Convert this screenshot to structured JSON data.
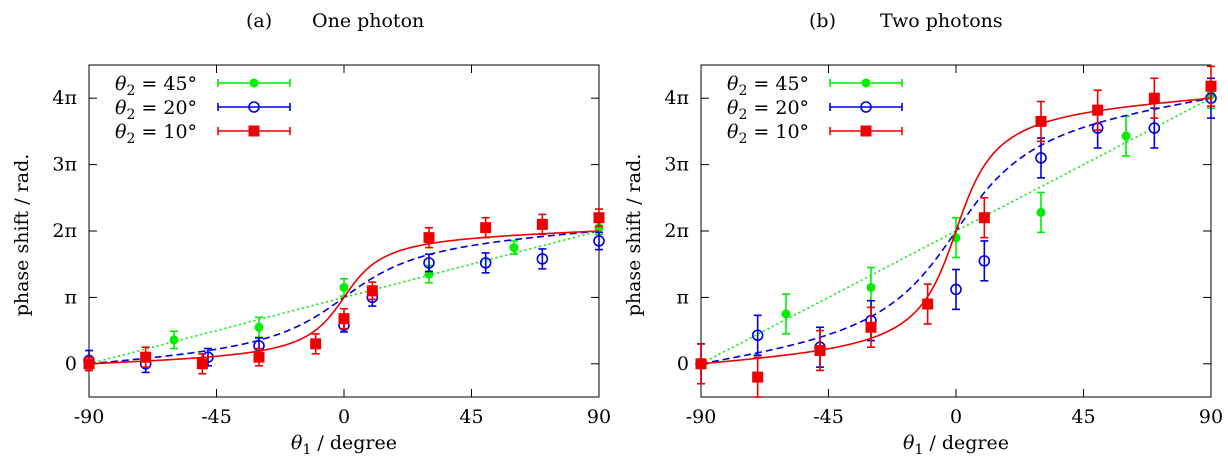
{
  "chart_data": [
    {
      "type": "line",
      "panel_letter": "(a)",
      "title": "One photon",
      "xlabel_symbol": "θ",
      "xlabel_sub": "1",
      "xlabel_rest": " / degree",
      "ylabel": "phase shift / rad.",
      "xlim": [
        -90,
        90
      ],
      "ylim": [
        -0.5,
        4.5
      ],
      "xticks": [
        -90,
        -45,
        0,
        45,
        90
      ],
      "xtick_labels": [
        "-90",
        "-45",
        "0",
        "45",
        "90"
      ],
      "yticks": [
        0,
        1,
        2,
        3,
        4
      ],
      "ytick_labels": [
        "0",
        "π",
        "2π",
        "3π",
        "4π"
      ],
      "y_unit": "π rad",
      "legend_position": "top-left",
      "series": [
        {
          "name_symbol": "θ",
          "name_sub": "2",
          "name_rest": " = 45°",
          "color": "#00ee00",
          "marker": "filled-circle",
          "line": "dotted",
          "fit_param": 1.0,
          "points": [
            {
              "x": -90,
              "y": 0.0,
              "err": 0.05
            },
            {
              "x": -60,
              "y": 0.36,
              "err": 0.13
            },
            {
              "x": -30,
              "y": 0.55,
              "err": 0.15
            },
            {
              "x": 0,
              "y": 1.15,
              "err": 0.13
            },
            {
              "x": 30,
              "y": 1.35,
              "err": 0.13
            },
            {
              "x": 60,
              "y": 1.75,
              "err": 0.1
            },
            {
              "x": 90,
              "y": 2.05,
              "err": 0.1
            }
          ]
        },
        {
          "name_symbol": "θ",
          "name_sub": "2",
          "name_rest": " = 20°",
          "color": "#0000dd",
          "marker": "open-circle",
          "line": "dashed",
          "fit_param": 0.36,
          "points": [
            {
              "x": -90,
              "y": 0.05,
              "err": 0.15
            },
            {
              "x": -70,
              "y": 0.0,
              "err": 0.13
            },
            {
              "x": -48,
              "y": 0.1,
              "err": 0.13
            },
            {
              "x": -30,
              "y": 0.27,
              "err": 0.12
            },
            {
              "x": 0,
              "y": 0.58,
              "err": 0.1
            },
            {
              "x": 10,
              "y": 1.0,
              "err": 0.13
            },
            {
              "x": 30,
              "y": 1.52,
              "err": 0.13
            },
            {
              "x": 50,
              "y": 1.52,
              "err": 0.15
            },
            {
              "x": 70,
              "y": 1.58,
              "err": 0.15
            },
            {
              "x": 90,
              "y": 1.85,
              "err": 0.13
            }
          ]
        },
        {
          "name_symbol": "θ",
          "name_sub": "2",
          "name_rest": " = 10°",
          "color": "#ee0000",
          "marker": "filled-square",
          "line": "solid",
          "fit_param": 0.18,
          "points": [
            {
              "x": -90,
              "y": 0.0,
              "err": 0.1
            },
            {
              "x": -70,
              "y": 0.1,
              "err": 0.15
            },
            {
              "x": -50,
              "y": 0.0,
              "err": 0.15
            },
            {
              "x": -30,
              "y": 0.1,
              "err": 0.13
            },
            {
              "x": -10,
              "y": 0.3,
              "err": 0.15
            },
            {
              "x": 0,
              "y": 0.68,
              "err": 0.15
            },
            {
              "x": 10,
              "y": 1.1,
              "err": 0.13
            },
            {
              "x": 30,
              "y": 1.9,
              "err": 0.15
            },
            {
              "x": 50,
              "y": 2.05,
              "err": 0.15
            },
            {
              "x": 70,
              "y": 2.1,
              "err": 0.15
            },
            {
              "x": 90,
              "y": 2.2,
              "err": 0.13
            }
          ]
        }
      ]
    },
    {
      "type": "line",
      "panel_letter": "(b)",
      "title": "Two photons",
      "xlabel_symbol": "θ",
      "xlabel_sub": "1",
      "xlabel_rest": " / degree",
      "ylabel": "phase shift / rad.",
      "xlim": [
        -90,
        90
      ],
      "ylim": [
        -0.5,
        4.5
      ],
      "xticks": [
        -90,
        -45,
        0,
        45,
        90
      ],
      "xtick_labels": [
        "-90",
        "-45",
        "0",
        "45",
        "90"
      ],
      "yticks": [
        0,
        1,
        2,
        3,
        4
      ],
      "ytick_labels": [
        "0",
        "π",
        "2π",
        "3π",
        "4π"
      ],
      "y_unit": "π rad",
      "legend_position": "top-left",
      "series": [
        {
          "name_symbol": "θ",
          "name_sub": "2",
          "name_rest": " = 45°",
          "color": "#00ee00",
          "marker": "filled-circle",
          "line": "dotted",
          "fit_param": 1.0,
          "points": [
            {
              "x": -90,
              "y": 0.0,
              "err": 0.05
            },
            {
              "x": -60,
              "y": 0.75,
              "err": 0.3
            },
            {
              "x": -30,
              "y": 1.15,
              "err": 0.3
            },
            {
              "x": 0,
              "y": 1.9,
              "err": 0.3
            },
            {
              "x": 30,
              "y": 2.28,
              "err": 0.3
            },
            {
              "x": 60,
              "y": 3.43,
              "err": 0.3
            },
            {
              "x": 90,
              "y": 4.05,
              "err": 0.2
            }
          ]
        },
        {
          "name_symbol": "θ",
          "name_sub": "2",
          "name_rest": " = 20°",
          "color": "#0000dd",
          "marker": "open-circle",
          "line": "dashed",
          "fit_param": 0.36,
          "points": [
            {
              "x": -90,
              "y": 0.0,
              "err": 0.3
            },
            {
              "x": -70,
              "y": 0.43,
              "err": 0.3
            },
            {
              "x": -48,
              "y": 0.25,
              "err": 0.3
            },
            {
              "x": -30,
              "y": 0.65,
              "err": 0.3
            },
            {
              "x": 0,
              "y": 1.12,
              "err": 0.3
            },
            {
              "x": 10,
              "y": 1.55,
              "err": 0.3
            },
            {
              "x": 30,
              "y": 3.1,
              "err": 0.3
            },
            {
              "x": 50,
              "y": 3.55,
              "err": 0.3
            },
            {
              "x": 70,
              "y": 3.55,
              "err": 0.3
            },
            {
              "x": 90,
              "y": 4.0,
              "err": 0.3
            }
          ]
        },
        {
          "name_symbol": "θ",
          "name_sub": "2",
          "name_rest": " = 10°",
          "color": "#ee0000",
          "marker": "filled-square",
          "line": "solid",
          "fit_param": 0.18,
          "points": [
            {
              "x": -90,
              "y": 0.0,
              "err": 0.3
            },
            {
              "x": -70,
              "y": -0.2,
              "err": 0.3
            },
            {
              "x": -48,
              "y": 0.2,
              "err": 0.3
            },
            {
              "x": -30,
              "y": 0.55,
              "err": 0.3
            },
            {
              "x": -10,
              "y": 0.9,
              "err": 0.3
            },
            {
              "x": 10,
              "y": 2.2,
              "err": 0.3
            },
            {
              "x": 30,
              "y": 3.65,
              "err": 0.3
            },
            {
              "x": 50,
              "y": 3.82,
              "err": 0.3
            },
            {
              "x": 70,
              "y": 4.0,
              "err": 0.3
            },
            {
              "x": 90,
              "y": 4.18,
              "err": 0.3
            }
          ]
        }
      ]
    }
  ]
}
